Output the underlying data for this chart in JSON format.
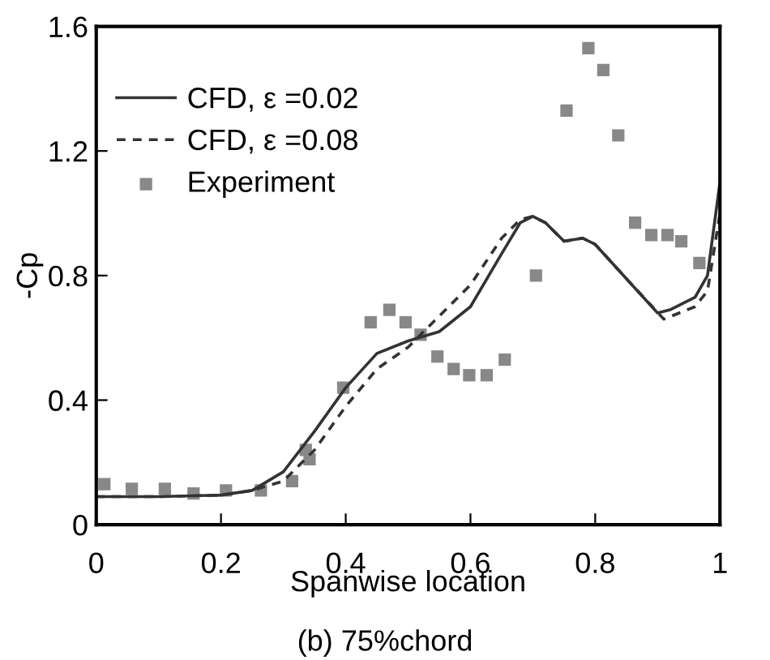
{
  "chart_data": {
    "type": "line",
    "title": "(b) 75%chord",
    "xlabel": "Spanwise location",
    "ylabel": "-Cp",
    "xlim": [
      0,
      1
    ],
    "ylim": [
      0,
      1.6
    ],
    "xticks": [
      0,
      0.2,
      0.4,
      0.6,
      0.8,
      1
    ],
    "yticks": [
      0,
      0.4,
      0.8,
      1.2,
      1.6
    ],
    "grid": false,
    "legend": "top left",
    "series": [
      {
        "name": "CFD, ε =0.02",
        "type": "line",
        "line_style": "solid",
        "marker": "none",
        "color": "#333333",
        "x": [
          0,
          0.1,
          0.2,
          0.25,
          0.3,
          0.35,
          0.4,
          0.45,
          0.5,
          0.55,
          0.6,
          0.65,
          0.68,
          0.7,
          0.72,
          0.75,
          0.78,
          0.8,
          0.85,
          0.9,
          0.92,
          0.96,
          0.98,
          1.0
        ],
        "values": [
          0.09,
          0.09,
          0.095,
          0.11,
          0.17,
          0.3,
          0.44,
          0.55,
          0.59,
          0.62,
          0.7,
          0.87,
          0.97,
          0.99,
          0.97,
          0.91,
          0.92,
          0.9,
          0.79,
          0.68,
          0.69,
          0.73,
          0.8,
          1.1
        ]
      },
      {
        "name": "CFD, ε =0.08",
        "type": "line",
        "line_style": "dashed",
        "marker": "none",
        "color": "#333333",
        "x": [
          0,
          0.1,
          0.2,
          0.25,
          0.3,
          0.35,
          0.4,
          0.45,
          0.5,
          0.55,
          0.6,
          0.65,
          0.68,
          0.7,
          0.72,
          0.75,
          0.78,
          0.8,
          0.85,
          0.91,
          0.96,
          0.98,
          1.0
        ],
        "values": [
          0.09,
          0.09,
          0.095,
          0.11,
          0.14,
          0.24,
          0.38,
          0.5,
          0.57,
          0.67,
          0.77,
          0.92,
          0.98,
          0.99,
          0.97,
          0.91,
          0.92,
          0.9,
          0.79,
          0.66,
          0.7,
          0.75,
          1.0
        ]
      },
      {
        "name": "Experiment",
        "type": "scatter",
        "marker": "square",
        "color": "#888888",
        "x": [
          0.013,
          0.057,
          0.11,
          0.156,
          0.208,
          0.264,
          0.314,
          0.336,
          0.342,
          0.396,
          0.44,
          0.47,
          0.496,
          0.52,
          0.547,
          0.573,
          0.598,
          0.626,
          0.655,
          0.705,
          0.754,
          0.789,
          0.813,
          0.837,
          0.864,
          0.89,
          0.916,
          0.938,
          0.967
        ],
        "values": [
          0.13,
          0.115,
          0.115,
          0.1,
          0.11,
          0.11,
          0.14,
          0.24,
          0.21,
          0.44,
          0.65,
          0.69,
          0.65,
          0.61,
          0.54,
          0.5,
          0.48,
          0.48,
          0.53,
          0.8,
          1.33,
          1.53,
          1.46,
          1.25,
          0.97,
          0.93,
          0.93,
          0.91,
          0.84
        ]
      }
    ]
  }
}
